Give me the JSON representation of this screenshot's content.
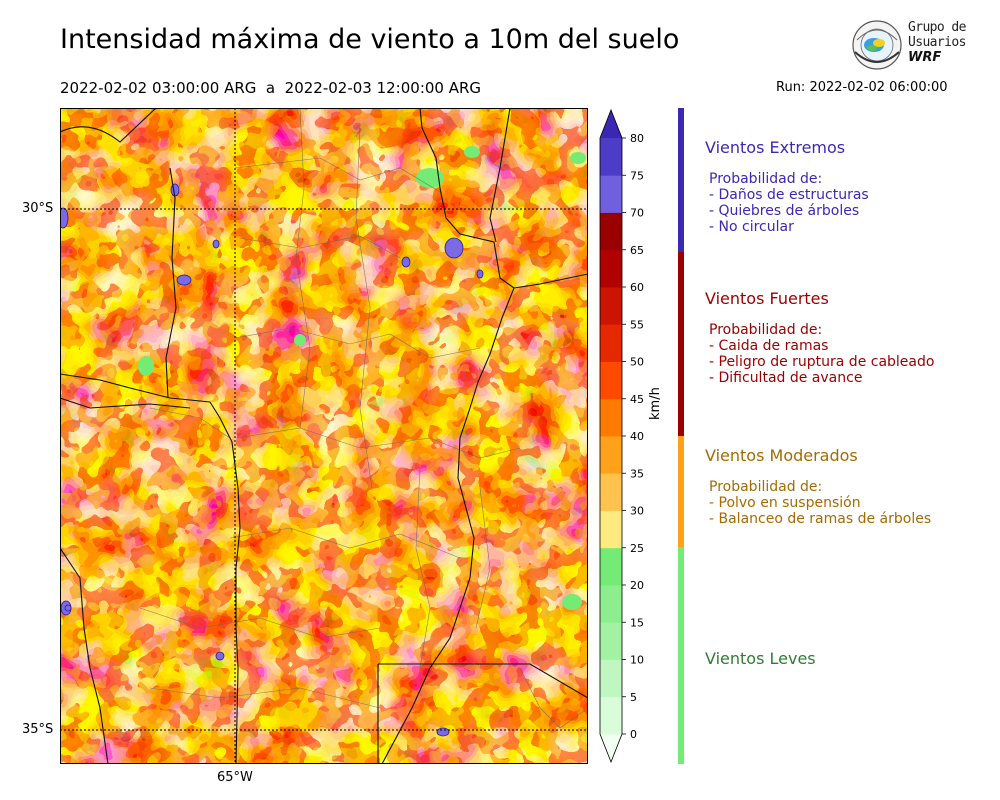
{
  "title": "Intensidad máxima de viento a 10m del suelo",
  "period": "2022-02-02 03:00:00 ARG  a  2022-02-03 12:00:00 ARG",
  "run": "Run: 2022-02-02 06:00:00",
  "logo": {
    "line1": "Grupo de",
    "line2": "Usuarios",
    "line3": "WRF"
  },
  "map": {
    "lat_labels": [
      "30°S",
      "35°S"
    ],
    "lon_labels": [
      "65°W"
    ]
  },
  "colorbar": {
    "unit": "km/h",
    "ticks": [
      "0",
      "5",
      "10",
      "15",
      "20",
      "25",
      "30",
      "35",
      "40",
      "45",
      "50",
      "55",
      "60",
      "65",
      "70",
      "75",
      "80"
    ],
    "colors": [
      "#f2fff2",
      "#d9fcd9",
      "#c0f7c0",
      "#a3f2a3",
      "#8cee8c",
      "#74eb74",
      "#ffea80",
      "#ffc34d",
      "#ffa21a",
      "#ff7a00",
      "#ff4a00",
      "#e62800",
      "#cc1400",
      "#b00000",
      "#9a0000",
      "#7060e0",
      "#4c3cc8",
      "#3a28b4"
    ],
    "colors_note": ""
  },
  "legend": [
    {
      "name": "Vientos Extremos",
      "color": "#3c28b4",
      "lines": [
        "Probabilidad de:",
        "- Daños de estructuras",
        "- Quiebres de árboles",
        "- No circular"
      ]
    },
    {
      "name": "Vientos Fuertes",
      "color": "#9b0000",
      "lines": [
        "Probabilidad de:",
        "- Caida de ramas",
        "- Peligro de ruptura de cableado",
        "- Dificultad de avance"
      ]
    },
    {
      "name": "Vientos Moderados",
      "color": "#a66a00",
      "bar_color": "#ffa21a",
      "lines": [
        "Probabilidad de:",
        "- Polvo en suspensión",
        "- Balanceo de ramas de árboles"
      ]
    },
    {
      "name": "Vientos Leves",
      "color": "#2e7d32",
      "bar_color": "#74eb74",
      "lines": []
    }
  ]
}
